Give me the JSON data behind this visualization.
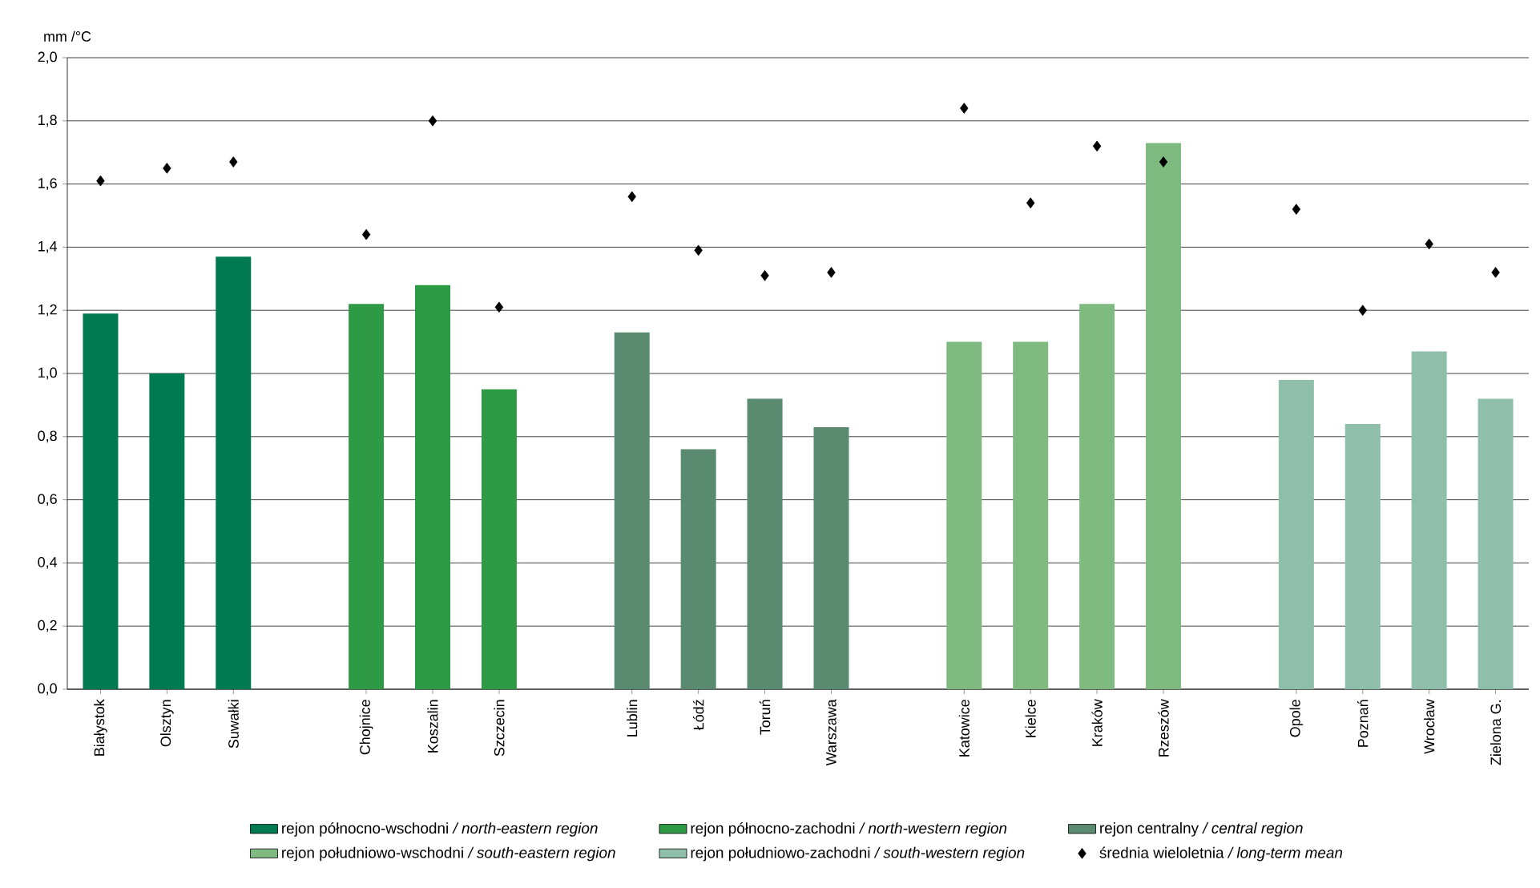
{
  "chart_data": {
    "type": "bar",
    "ylabel": "mm /°C",
    "categories": [
      "Białystok",
      "Olsztyn",
      "Suwałki",
      null,
      "Chojnice",
      "Koszalin",
      "Szczecin",
      null,
      "Lublin",
      "Łódź",
      "Toruń",
      "Warszawa",
      null,
      "Katowice",
      "Kielce",
      "Kraków",
      "Rzeszów",
      null,
      "Opole",
      "Poznań",
      "Wrocław",
      "Zielona G."
    ],
    "series": [
      {
        "name": "rejon północno-wschodni */ north-eastern region*",
        "color": "#007a50",
        "values": [
          1.19,
          1.0,
          1.37,
          null,
          null,
          null,
          null,
          null,
          null,
          null,
          null,
          null,
          null,
          null,
          null,
          null,
          null,
          null,
          null,
          null,
          null,
          null
        ]
      },
      {
        "name": "rejon północno-zachodni */ north-western region*",
        "color": "#2e9a45",
        "values": [
          null,
          null,
          null,
          null,
          1.22,
          1.28,
          0.95,
          null,
          null,
          null,
          null,
          null,
          null,
          null,
          null,
          null,
          null,
          null,
          null,
          null,
          null,
          null
        ]
      },
      {
        "name": "rejon centralny */ central region*",
        "color": "#5a8a70",
        "values": [
          null,
          null,
          null,
          null,
          null,
          null,
          null,
          null,
          1.13,
          0.76,
          0.92,
          0.83,
          null,
          null,
          null,
          null,
          null,
          null,
          null,
          null,
          null,
          null
        ]
      },
      {
        "name": "rejon południowo-wschodni */ south-eastern region*",
        "color": "#7fba80",
        "values": [
          null,
          null,
          null,
          null,
          null,
          null,
          null,
          null,
          null,
          null,
          null,
          null,
          null,
          1.1,
          1.1,
          1.22,
          1.73,
          null,
          null,
          null,
          null,
          null
        ]
      },
      {
        "name": "rejon południowo-zachodni */ south-western region*",
        "color": "#8fbfaa",
        "values": [
          null,
          null,
          null,
          null,
          null,
          null,
          null,
          null,
          null,
          null,
          null,
          null,
          null,
          null,
          null,
          null,
          null,
          null,
          0.98,
          0.84,
          1.07,
          0.92
        ]
      },
      {
        "name": "średnia wieloletnia */ long-term mean*",
        "type": "scatter",
        "marker": "diamond",
        "color": "#000000",
        "values": [
          1.61,
          1.65,
          1.67,
          null,
          1.44,
          1.8,
          1.21,
          null,
          1.56,
          1.39,
          1.31,
          1.32,
          null,
          1.84,
          1.54,
          1.72,
          1.67,
          null,
          1.52,
          1.2,
          1.41,
          1.32
        ]
      }
    ],
    "ylim": [
      0,
      2.0
    ],
    "yticks": [
      {
        "value": 0,
        "label": "0,0"
      },
      {
        "value": 0.2,
        "label": "0,2"
      },
      {
        "value": 0.4,
        "label": "0,4"
      },
      {
        "value": 0.6,
        "label": "0,6"
      },
      {
        "value": 0.8,
        "label": "0,8"
      },
      {
        "value": 1.0,
        "label": "1,0"
      },
      {
        "value": 1.2,
        "label": "1,2"
      },
      {
        "value": 1.4,
        "label": "1,4"
      },
      {
        "value": 1.6,
        "label": "1,6"
      },
      {
        "value": 1.8,
        "label": "1,8"
      },
      {
        "value": 2.0,
        "label": "2,0"
      }
    ],
    "grid": "y",
    "legend": "bottom"
  }
}
